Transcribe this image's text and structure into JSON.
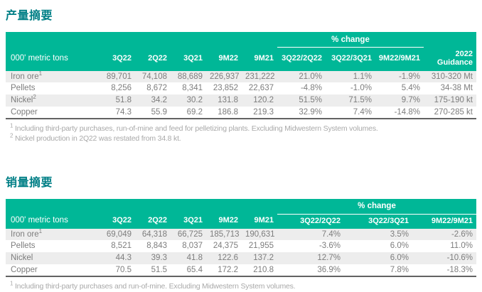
{
  "colors": {
    "header_teal": "#00B797",
    "title_teal": "#007F86",
    "body_text_gray": "#7D7D7D",
    "row_stripe": "#EDEDED",
    "table_bottom_border": "#636363",
    "footnote_gray": "#A9A9A9"
  },
  "production": {
    "title": "产量摘要",
    "unit_label": "000' metric tons",
    "pct_change_label": "% change",
    "periods": [
      "3Q22",
      "2Q22",
      "3Q21",
      "9M22",
      "9M21"
    ],
    "pct_periods": [
      "3Q22/2Q22",
      "3Q22/3Q21",
      "9M22/9M21"
    ],
    "guidance_header": [
      "2022",
      "Guidance"
    ],
    "rows": [
      {
        "label": "Iron ore",
        "sup": "1",
        "values": [
          "89,701",
          "74,108",
          "88,689",
          "226,937",
          "231,222"
        ],
        "pct": [
          "21.0%",
          "1.1%",
          "-1.9%"
        ],
        "guidance": "310-320 Mt"
      },
      {
        "label": "Pellets",
        "sup": "",
        "values": [
          "8,256",
          "8,672",
          "8,341",
          "23,852",
          "22,637"
        ],
        "pct": [
          "-4.8%",
          "-1.0%",
          "5.4%"
        ],
        "guidance": "34-38 Mt"
      },
      {
        "label": "Nickel",
        "sup": "2",
        "values": [
          "51.8",
          "34.2",
          "30.2",
          "131.8",
          "120.2"
        ],
        "pct": [
          "51.5%",
          "71.5%",
          "9.7%"
        ],
        "guidance": "175-190 kt"
      },
      {
        "label": "Copper",
        "sup": "",
        "values": [
          "74.3",
          "55.9",
          "69.2",
          "186.8",
          "219.3"
        ],
        "pct": [
          "32.9%",
          "7.4%",
          "-14.8%"
        ],
        "guidance": "270-285 kt"
      }
    ],
    "footnotes": [
      {
        "sup": "1",
        "text": "Including third-party purchases, run-of-mine and feed for pelletizing plants. Excluding Midwestern System volumes."
      },
      {
        "sup": "2",
        "text": "Nickel production in 2Q22 was restated from 34.8 kt."
      }
    ]
  },
  "sales": {
    "title": "销量摘要",
    "unit_label": "000' metric tons",
    "pct_change_label": "% change",
    "periods": [
      "3Q22",
      "2Q22",
      "3Q21",
      "9M22",
      "9M21"
    ],
    "pct_periods": [
      "3Q22/2Q22",
      "3Q22/3Q21",
      "9M22/9M21"
    ],
    "rows": [
      {
        "label": "Iron ore",
        "sup": "1",
        "values": [
          "69,049",
          "64,318",
          "66,725",
          "185,713",
          "190,631"
        ],
        "pct": [
          "7.4%",
          "3.5%",
          "-2.6%"
        ]
      },
      {
        "label": "Pellets",
        "sup": "",
        "values": [
          "8,521",
          "8,843",
          "8,037",
          "24,375",
          "21,955"
        ],
        "pct": [
          "-3.6%",
          "6.0%",
          "11.0%"
        ]
      },
      {
        "label": "Nickel",
        "sup": "",
        "values": [
          "44.3",
          "39.3",
          "41.8",
          "122.6",
          "137.2"
        ],
        "pct": [
          "12.7%",
          "6.0%",
          "-10.6%"
        ]
      },
      {
        "label": "Copper",
        "sup": "",
        "values": [
          "70.5",
          "51.5",
          "65.4",
          "172.2",
          "210.8"
        ],
        "pct": [
          "36.9%",
          "7.8%",
          "-18.3%"
        ]
      }
    ],
    "footnotes": [
      {
        "sup": "1",
        "text": "Including third-party purchases and run-of-mine. Excluding Midwestern System volumes."
      }
    ]
  }
}
